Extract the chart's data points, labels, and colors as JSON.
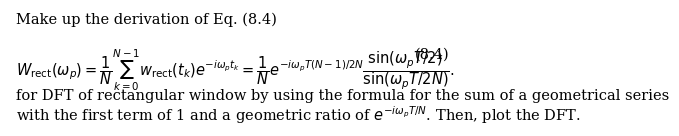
{
  "title_text": "Make up the derivation of Eq. (8.4)",
  "eq_label": "(8.4)",
  "body_text1": "for DFT of rectangular window by using the formula for the sum of a geometrical series",
  "body_text2": "with the first term of 1 and a geometric ratio of $e^{-i\\omega_p T/N}$. Then, plot the DFT.",
  "bg_color": "#ffffff",
  "text_color": "#000000",
  "fontsize_title": 10.5,
  "fontsize_eq": 10.5,
  "fontsize_body": 10.5
}
